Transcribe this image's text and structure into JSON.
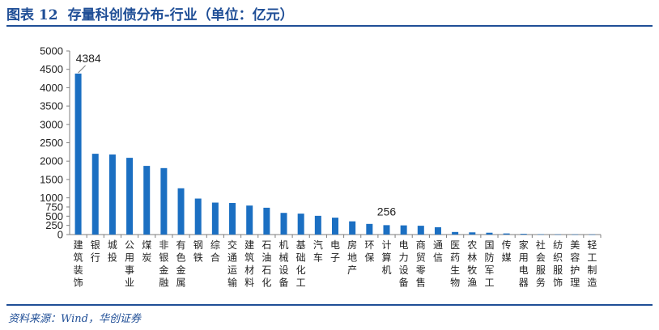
{
  "header": {
    "figure_no": "图表 12",
    "title": "存量科创债分布-行业（单位：亿元）"
  },
  "footer": {
    "source": "资料来源：Wind，华创证券"
  },
  "chart_data": {
    "type": "bar",
    "categories": [
      "建筑装饰",
      "银行",
      "城投",
      "公用事业",
      "煤炭",
      "非银金融",
      "有色金属",
      "钢铁",
      "综合",
      "交通运输",
      "建筑材料",
      "石油石化",
      "机械设备",
      "基础化工",
      "汽车",
      "电子",
      "房地产",
      "环保",
      "计算机",
      "电力设备",
      "商贸零售",
      "通信",
      "医药生物",
      "农林牧渔",
      "国防军工",
      "传媒",
      "家用电器",
      "社会服务",
      "纺织服饰",
      "美容护理",
      "轻工制造"
    ],
    "values": [
      4384,
      2200,
      2180,
      2090,
      1870,
      1810,
      1260,
      980,
      870,
      860,
      790,
      730,
      590,
      570,
      510,
      460,
      360,
      290,
      256,
      250,
      240,
      200,
      70,
      60,
      50,
      30,
      20,
      8,
      5,
      5,
      3
    ],
    "ylim": [
      0,
      5000
    ],
    "yticks": [
      0,
      250,
      500,
      750,
      1000,
      1500,
      2000,
      2500,
      3000,
      3500,
      4000,
      4500,
      5000
    ],
    "data_labels": [
      {
        "category": "建筑装饰",
        "text": "4384"
      },
      {
        "category": "计算机",
        "text": "256"
      }
    ],
    "bar_color": "#1b6fc2",
    "grid": false,
    "legend": "none"
  }
}
